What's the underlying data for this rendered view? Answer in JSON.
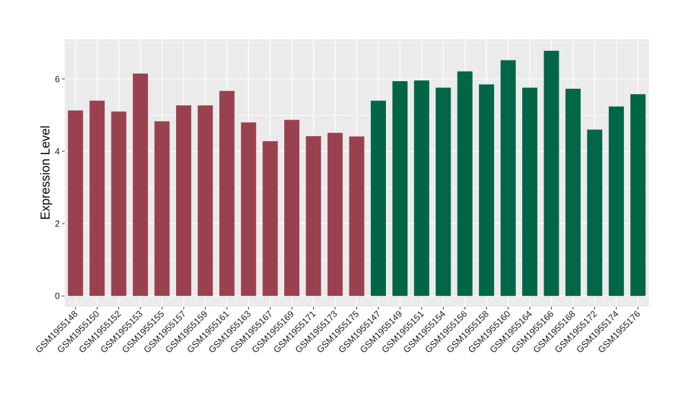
{
  "chart_data": {
    "type": "bar",
    "ylabel": "Expression Level",
    "xlabel": "",
    "ylim": [
      -0.3,
      7.1
    ],
    "yticks": [
      0,
      2,
      4,
      6
    ],
    "grid": true,
    "colors": {
      "group1": "#9a4150",
      "group2": "#006647",
      "panel": "#ebebeb",
      "grid": "#ffffff"
    },
    "categories": [
      "GSM1955148",
      "GSM1955150",
      "GSM1955152",
      "GSM1955153",
      "GSM1955155",
      "GSM1955157",
      "GSM1955159",
      "GSM1955161",
      "GSM1955163",
      "GSM1955167",
      "GSM1955169",
      "GSM1955171",
      "GSM1955173",
      "GSM1955175",
      "GSM1955147",
      "GSM1955149",
      "GSM1955151",
      "GSM1955154",
      "GSM1955156",
      "GSM1955158",
      "GSM1955160",
      "GSM1955164",
      "GSM1955166",
      "GSM1955168",
      "GSM1955172",
      "GSM1955174",
      "GSM1955176"
    ],
    "values": [
      5.13,
      5.4,
      5.1,
      6.15,
      4.83,
      5.27,
      5.27,
      5.67,
      4.8,
      4.28,
      4.87,
      4.42,
      4.51,
      4.41,
      5.4,
      5.94,
      5.96,
      5.76,
      6.21,
      5.85,
      6.52,
      5.76,
      6.78,
      5.73,
      4.6,
      5.24,
      5.58
    ],
    "groups": [
      1,
      1,
      1,
      1,
      1,
      1,
      1,
      1,
      1,
      1,
      1,
      1,
      1,
      1,
      2,
      2,
      2,
      2,
      2,
      2,
      2,
      2,
      2,
      2,
      2,
      2,
      2
    ]
  }
}
